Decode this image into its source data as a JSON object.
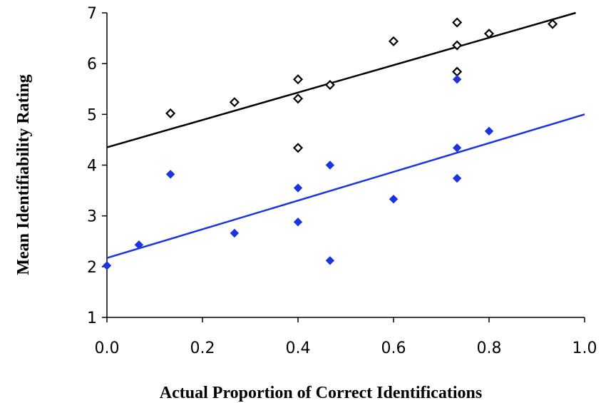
{
  "chart_data": {
    "type": "scatter",
    "title": "",
    "xlabel": "Actual Proportion of Correct Identifications",
    "ylabel": "Mean Identifiability Rating",
    "xlim": [
      0,
      1
    ],
    "ylim": [
      1,
      7
    ],
    "x_ticks": [
      "0.0",
      "0.2",
      "0.4",
      "0.6",
      "0.8",
      "1.0"
    ],
    "y_ticks": [
      "1",
      "2",
      "3",
      "4",
      "5",
      "6",
      "7"
    ],
    "grid": false,
    "legend": "none",
    "series": [
      {
        "color": "#000000",
        "marker": "open-diamond",
        "points": [
          {
            "x": 0.133,
            "y": 5.02
          },
          {
            "x": 0.267,
            "y": 5.24
          },
          {
            "x": 0.4,
            "y": 5.69
          },
          {
            "x": 0.4,
            "y": 5.31
          },
          {
            "x": 0.4,
            "y": 4.34
          },
          {
            "x": 0.467,
            "y": 5.58
          },
          {
            "x": 0.6,
            "y": 6.44
          },
          {
            "x": 0.733,
            "y": 6.81
          },
          {
            "x": 0.733,
            "y": 6.36
          },
          {
            "x": 0.733,
            "y": 5.84
          },
          {
            "x": 0.8,
            "y": 6.59
          },
          {
            "x": 0.933,
            "y": 6.78
          }
        ],
        "trendline": {
          "x": [
            0,
            1
          ],
          "y": [
            4.35,
            7.05
          ]
        }
      },
      {
        "color": "#1a35e0",
        "marker": "filled-diamond",
        "points": [
          {
            "x": 0.0,
            "y": 2.02
          },
          {
            "x": 0.067,
            "y": 2.43
          },
          {
            "x": 0.133,
            "y": 3.82
          },
          {
            "x": 0.267,
            "y": 2.66
          },
          {
            "x": 0.4,
            "y": 3.55
          },
          {
            "x": 0.4,
            "y": 2.88
          },
          {
            "x": 0.467,
            "y": 4.0
          },
          {
            "x": 0.467,
            "y": 2.12
          },
          {
            "x": 0.6,
            "y": 3.33
          },
          {
            "x": 0.733,
            "y": 5.69
          },
          {
            "x": 0.733,
            "y": 4.34
          },
          {
            "x": 0.733,
            "y": 3.74
          },
          {
            "x": 0.8,
            "y": 4.67
          }
        ],
        "trendline": {
          "x": [
            0,
            1
          ],
          "y": [
            2.17,
            5.0
          ]
        }
      }
    ]
  }
}
